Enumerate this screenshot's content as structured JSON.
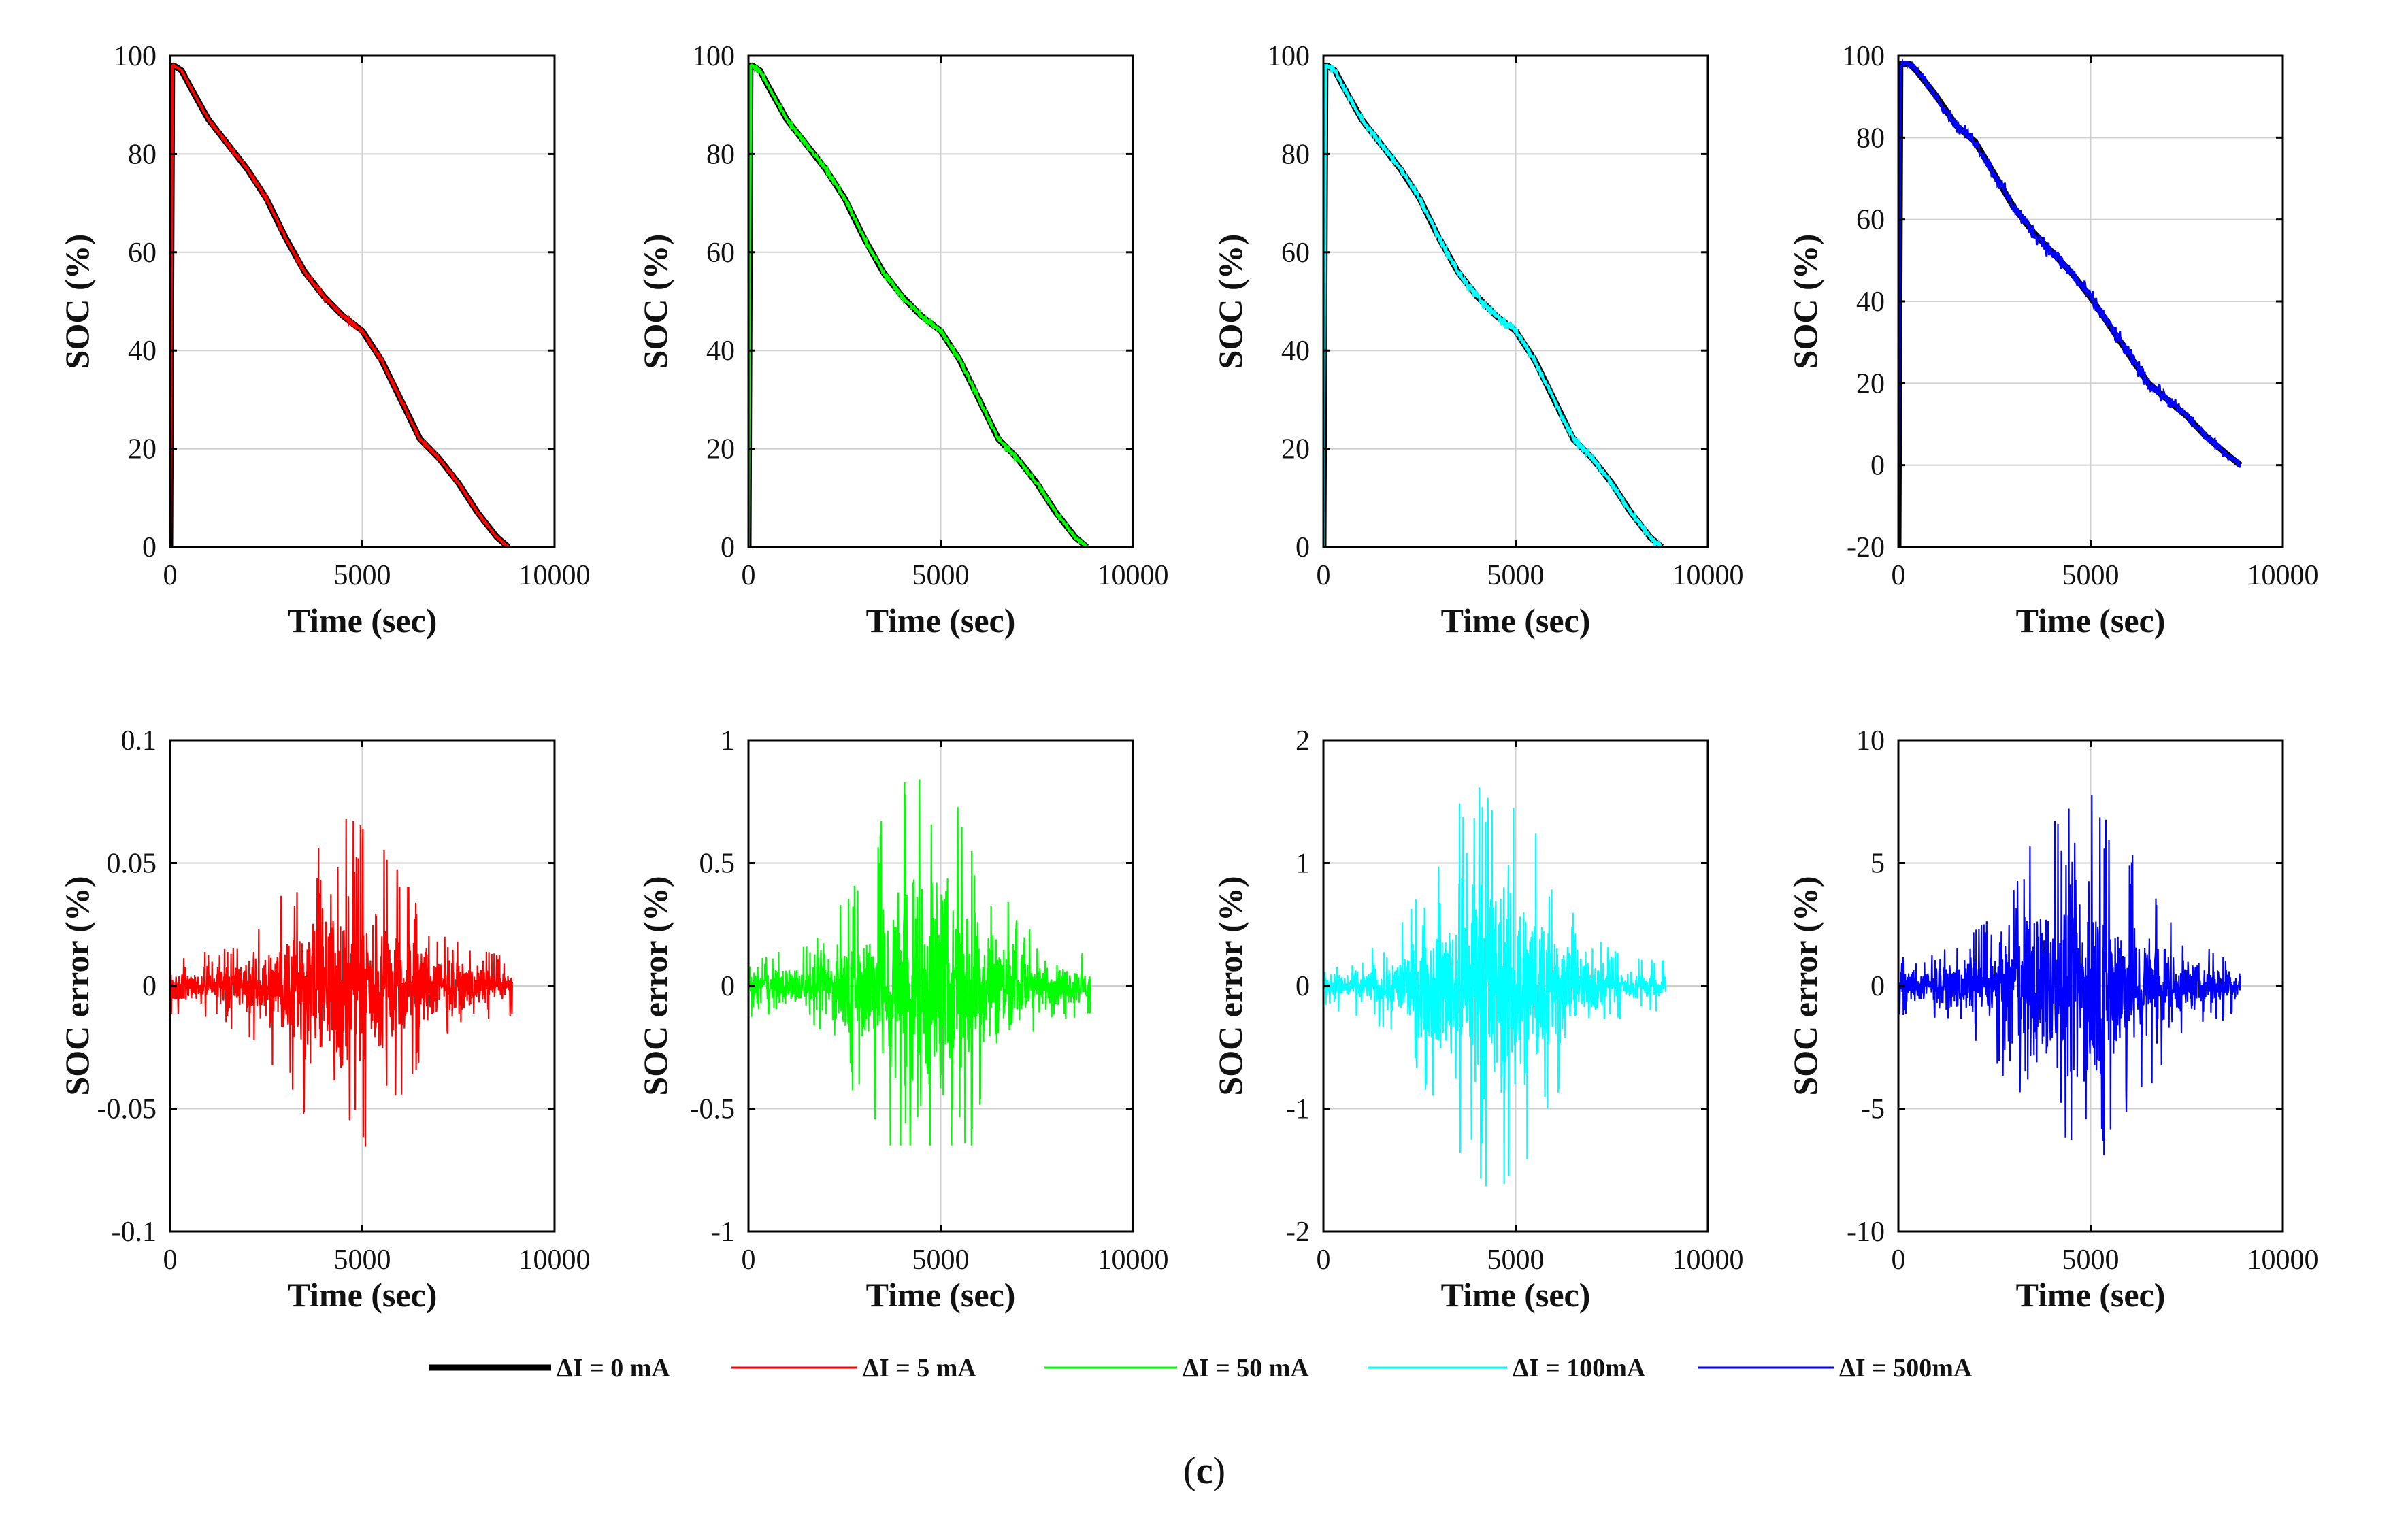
{
  "figure": {
    "caption": "(c)",
    "caption_letter": "c",
    "series_colors": {
      "dI_0": "#000000",
      "dI_5": "#ff0000",
      "dI_50": "#00ff00",
      "dI_100": "#00ffff",
      "dI_500": "#0000ff"
    }
  },
  "legend": {
    "placement": "bottom-center",
    "entries": [
      {
        "name": "ΔI = 0 mA",
        "color": "#000000",
        "thick": true
      },
      {
        "name": "ΔI = 5 mA",
        "color": "#ff0000",
        "thick": false
      },
      {
        "name": "ΔI = 50  mA",
        "color": "#00ff00",
        "thick": false
      },
      {
        "name": "ΔI = 100mA",
        "color": "#00ffff",
        "thick": false
      },
      {
        "name": "ΔI = 500mA",
        "color": "#0000ff",
        "thick": false
      }
    ]
  },
  "chart_data": [
    {
      "type": "line",
      "row": 0,
      "col": 0,
      "title": "",
      "xlabel": "Time (sec)",
      "ylabel": "SOC (%)",
      "xlim": [
        0,
        10000
      ],
      "ylim": [
        0,
        100
      ],
      "xticks": [
        0,
        5000,
        10000
      ],
      "xtick_labels": [
        "0",
        "5000",
        "10000"
      ],
      "yticks": [
        0,
        20,
        40,
        60,
        80,
        100
      ],
      "ytick_labels": [
        "0",
        "20",
        "40",
        "60",
        "80",
        "100"
      ],
      "grid": true,
      "series": [
        {
          "name": "ΔI = 0 mA",
          "color": "#000000",
          "x": [
            0,
            50,
            100,
            300,
            500,
            1000,
            1500,
            2000,
            2500,
            3000,
            3500,
            4000,
            4500,
            5000,
            5500,
            6000,
            6500,
            7000,
            7500,
            8000,
            8500,
            8800
          ],
          "y": [
            0,
            98,
            98,
            97,
            94,
            87,
            82,
            77,
            71,
            63,
            56,
            51,
            47,
            44,
            38,
            30,
            22,
            18,
            13,
            7,
            2,
            0
          ]
        },
        {
          "name": "ΔI = 5 mA",
          "color": "#ff0000",
          "x": [
            0,
            50,
            100,
            300,
            500,
            1000,
            1500,
            2000,
            2500,
            3000,
            3500,
            4000,
            4500,
            5000,
            5500,
            6000,
            6500,
            7000,
            7500,
            8000,
            8500,
            8800
          ],
          "y": [
            0,
            98,
            98,
            97,
            94,
            87,
            82,
            77,
            71,
            63,
            56,
            51,
            47,
            44,
            38,
            30,
            22,
            18,
            13,
            7,
            2,
            0
          ],
          "noise": 0.4
        }
      ]
    },
    {
      "type": "line",
      "row": 0,
      "col": 1,
      "title": "",
      "xlabel": "Time (sec)",
      "ylabel": "SOC (%)",
      "xlim": [
        0,
        10000
      ],
      "ylim": [
        0,
        100
      ],
      "xticks": [
        0,
        5000,
        10000
      ],
      "xtick_labels": [
        "0",
        "5000",
        "10000"
      ],
      "yticks": [
        0,
        20,
        40,
        60,
        80,
        100
      ],
      "ytick_labels": [
        "0",
        "20",
        "40",
        "60",
        "80",
        "100"
      ],
      "grid": true,
      "series": [
        {
          "name": "ΔI = 0 mA",
          "color": "#000000",
          "x": [
            0,
            50,
            100,
            300,
            500,
            1000,
            1500,
            2000,
            2500,
            3000,
            3500,
            4000,
            4500,
            5000,
            5500,
            6000,
            6500,
            7000,
            7500,
            8000,
            8500,
            8800
          ],
          "y": [
            0,
            98,
            98,
            97,
            94,
            87,
            82,
            77,
            71,
            63,
            56,
            51,
            47,
            44,
            38,
            30,
            22,
            18,
            13,
            7,
            2,
            0
          ]
        },
        {
          "name": "ΔI = 50  mA",
          "color": "#00ff00",
          "x": [
            0,
            50,
            100,
            300,
            500,
            1000,
            1500,
            2000,
            2500,
            3000,
            3500,
            4000,
            4500,
            5000,
            5500,
            6000,
            6500,
            7000,
            7500,
            8000,
            8500,
            8800
          ],
          "y": [
            0,
            98,
            98,
            97,
            94,
            87,
            82,
            77,
            71,
            63,
            56,
            51,
            47,
            44,
            38,
            30,
            22,
            18,
            13,
            7,
            2,
            0
          ],
          "noise": 0.6
        }
      ]
    },
    {
      "type": "line",
      "row": 0,
      "col": 2,
      "title": "",
      "xlabel": "Time (sec)",
      "ylabel": "SOC (%)",
      "xlim": [
        0,
        10000
      ],
      "ylim": [
        0,
        100
      ],
      "xticks": [
        0,
        5000,
        10000
      ],
      "xtick_labels": [
        "0",
        "5000",
        "10000"
      ],
      "yticks": [
        0,
        20,
        40,
        60,
        80,
        100
      ],
      "ytick_labels": [
        "0",
        "20",
        "40",
        "60",
        "80",
        "100"
      ],
      "grid": true,
      "series": [
        {
          "name": "ΔI = 0 mA",
          "color": "#000000",
          "x": [
            0,
            50,
            100,
            300,
            500,
            1000,
            1500,
            2000,
            2500,
            3000,
            3500,
            4000,
            4500,
            5000,
            5500,
            6000,
            6500,
            7000,
            7500,
            8000,
            8500,
            8800
          ],
          "y": [
            0,
            98,
            98,
            97,
            94,
            87,
            82,
            77,
            71,
            63,
            56,
            51,
            47,
            44,
            38,
            30,
            22,
            18,
            13,
            7,
            2,
            0
          ]
        },
        {
          "name": "ΔI = 100mA",
          "color": "#00ffff",
          "x": [
            0,
            50,
            100,
            300,
            500,
            1000,
            1500,
            2000,
            2500,
            3000,
            3500,
            4000,
            4500,
            5000,
            5500,
            6000,
            6500,
            7000,
            7500,
            8000,
            8500,
            8800
          ],
          "y": [
            0,
            98,
            98,
            97,
            94,
            87,
            82,
            77,
            71,
            63,
            56,
            51,
            47,
            44,
            38,
            30,
            22,
            18,
            13,
            7,
            2,
            0
          ],
          "noise": 1.0
        }
      ]
    },
    {
      "type": "line",
      "row": 0,
      "col": 3,
      "title": "",
      "xlabel": "Time (sec)",
      "ylabel": "SOC (%)",
      "xlim": [
        0,
        10000
      ],
      "ylim": [
        -20,
        100
      ],
      "xticks": [
        0,
        5000,
        10000
      ],
      "xtick_labels": [
        "0",
        "5000",
        "10000"
      ],
      "yticks": [
        -20,
        0,
        20,
        40,
        60,
        80,
        100
      ],
      "ytick_labels": [
        "-20",
        "0",
        "20",
        "40",
        "60",
        "80",
        "100"
      ],
      "grid": true,
      "series": [
        {
          "name": "ΔI = 0 mA",
          "color": "#000000",
          "x": [
            0,
            50,
            100,
            300,
            500,
            1000,
            1500,
            2000,
            2500,
            3000,
            3500,
            4000,
            4500,
            5000,
            5500,
            6000,
            6500,
            7000,
            7500,
            8000,
            8500,
            8900
          ],
          "y": [
            -20,
            98,
            98,
            98,
            96,
            90,
            83,
            79,
            71,
            63,
            57,
            52,
            47,
            41,
            34,
            27,
            20,
            16,
            12,
            7,
            3,
            0
          ]
        },
        {
          "name": "ΔI = 500mA",
          "color": "#0000ff",
          "x": [
            0,
            50,
            100,
            300,
            500,
            1000,
            1500,
            2000,
            2500,
            3000,
            3500,
            4000,
            4500,
            5000,
            5500,
            6000,
            6500,
            7000,
            7500,
            8000,
            8500,
            8900
          ],
          "y": [
            -20,
            98,
            98,
            98,
            96,
            90,
            83,
            79,
            71,
            63,
            57,
            52,
            47,
            41,
            34,
            27,
            20,
            16,
            12,
            7,
            3,
            0
          ],
          "noise": 3.0
        }
      ]
    },
    {
      "type": "line",
      "row": 1,
      "col": 0,
      "title": "",
      "xlabel": "Time (sec)",
      "ylabel": "SOC error (%)",
      "xlim": [
        0,
        10000
      ],
      "ylim": [
        -0.1,
        0.1
      ],
      "xticks": [
        0,
        5000,
        10000
      ],
      "xtick_labels": [
        "0",
        "5000",
        "10000"
      ],
      "yticks": [
        -0.1,
        -0.05,
        0,
        0.05,
        0.1
      ],
      "ytick_labels": [
        "-0.1",
        "-0.05",
        "0",
        "0.05",
        "0.1"
      ],
      "grid": true,
      "error_envelope": {
        "x_end": 8900,
        "peak_x": 4600,
        "base_amp": 0.012,
        "peak_amp": 0.068,
        "min": -0.066,
        "max": 0.068
      },
      "series": [
        {
          "name": "ΔI = 5 mA",
          "color": "#ff0000"
        }
      ]
    },
    {
      "type": "line",
      "row": 1,
      "col": 1,
      "title": "",
      "xlabel": "Time (sec)",
      "ylabel": "SOC error (%)",
      "xlim": [
        0,
        10000
      ],
      "ylim": [
        -1,
        1
      ],
      "xticks": [
        0,
        5000,
        10000
      ],
      "xtick_labels": [
        "0",
        "5000",
        "10000"
      ],
      "yticks": [
        -1,
        -0.5,
        0,
        0.5,
        1
      ],
      "ytick_labels": [
        "-1",
        "-0.5",
        "0",
        "0.5",
        "1"
      ],
      "grid": true,
      "error_envelope": {
        "x_end": 8900,
        "peak_x": 4600,
        "base_amp": 0.12,
        "peak_amp": 0.88,
        "min": -0.65,
        "max": 0.88
      },
      "series": [
        {
          "name": "ΔI = 50  mA",
          "color": "#00ff00"
        }
      ]
    },
    {
      "type": "line",
      "row": 1,
      "col": 2,
      "title": "",
      "xlabel": "Time (sec)",
      "ylabel": "SOC error (%)",
      "xlim": [
        0,
        10000
      ],
      "ylim": [
        -2,
        2
      ],
      "xticks": [
        0,
        5000,
        10000
      ],
      "xtick_labels": [
        "0",
        "5000",
        "10000"
      ],
      "yticks": [
        -2,
        -1,
        0,
        1,
        2
      ],
      "ytick_labels": [
        "-2",
        "-1",
        "0",
        "1",
        "2"
      ],
      "grid": true,
      "error_envelope": {
        "x_end": 8900,
        "peak_x": 4400,
        "base_amp": 0.2,
        "peak_amp": 1.72,
        "min": -1.63,
        "max": 1.72
      },
      "series": [
        {
          "name": "ΔI = 100mA",
          "color": "#00ffff"
        }
      ]
    },
    {
      "type": "line",
      "row": 1,
      "col": 3,
      "title": "",
      "xlabel": "Time (sec)",
      "ylabel": "SOC error (%)",
      "xlim": [
        0,
        10000
      ],
      "ylim": [
        -10,
        10
      ],
      "xticks": [
        0,
        5000,
        10000
      ],
      "xtick_labels": [
        "0",
        "5000",
        "10000"
      ],
      "yticks": [
        -10,
        -5,
        0,
        5,
        10
      ],
      "ytick_labels": [
        "-10",
        "-5",
        "0",
        "5",
        "10"
      ],
      "grid": true,
      "error_envelope": {
        "x_end": 8900,
        "peak_x": 4700,
        "base_amp": 1.2,
        "peak_amp": 7.8,
        "min": -6.9,
        "max": 7.8
      },
      "series": [
        {
          "name": "ΔI = 500mA",
          "color": "#0000ff"
        }
      ]
    }
  ]
}
